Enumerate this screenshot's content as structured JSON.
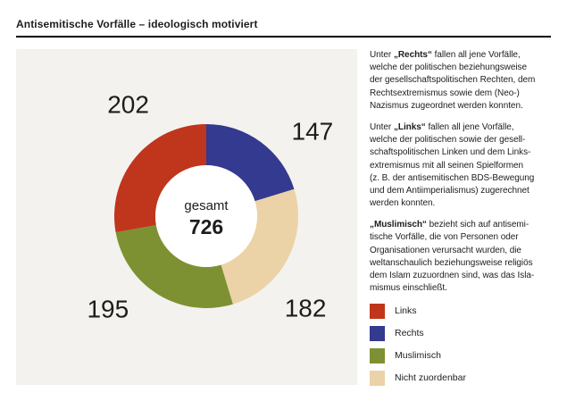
{
  "header": {
    "title": "Antisemitische Vorfälle – ideologisch motiviert"
  },
  "explanations": {
    "paragraphs": [
      {
        "prefix": "Unter ",
        "lead": "„Rechts“",
        "rest": " fallen all jene Vorfälle,\nwelche der politischen beziehungsweise\nder gesellschaftspolitischen Rechten, dem\nRechtsextremismus sowie dem (Neo-)\nNazismus zugeordnet werden konnten."
      },
      {
        "prefix": "Unter ",
        "lead": "„Links“",
        "rest": " fallen all jene Vorfälle,\nwelche der politischen sowie der gesell-\nschaftspolitischen Linken und dem Links-\nextremismus mit all seinen Spielformen\n(z. B. der antisemitischen BDS-Bewegung\nund dem Antiimperialismus) zugerechnet\nwerden konnten."
      },
      {
        "prefix": "",
        "lead": "„Muslimisch“",
        "rest": " bezieht sich auf antisemi-\ntische Vorfälle, die von Personen oder\nOrganisationen verursacht wurden, die\nweltanschaulich beziehungsweise religiös\ndem Islam zuzuordnen sind, was das Isla-\nmismus einschließt."
      }
    ]
  },
  "chart_data": {
    "type": "pie",
    "variant": "donut",
    "title": "Antisemitische Vorfälle – ideologisch motiviert",
    "center_label": "gesamt",
    "total": 726,
    "direction": "clockwise",
    "start_at": "top",
    "slices": [
      {
        "label": "Rechts",
        "value": 147,
        "color": "#333a8f"
      },
      {
        "label": "Nicht zuordenbar",
        "value": 182,
        "color": "#ecd2a7"
      },
      {
        "label": "Muslimisch",
        "value": 195,
        "color": "#7d9132"
      },
      {
        "label": "Links",
        "value": 202,
        "color": "#bf361c"
      }
    ],
    "legend": [
      {
        "label": "Links",
        "color": "#bf361c"
      },
      {
        "label": "Rechts",
        "color": "#333a8f"
      },
      {
        "label": "Muslimisch",
        "color": "#7d9132"
      },
      {
        "label": "Nicht zuordenbar",
        "color": "#ecd2a7"
      }
    ],
    "legend_position": "right-bottom"
  }
}
